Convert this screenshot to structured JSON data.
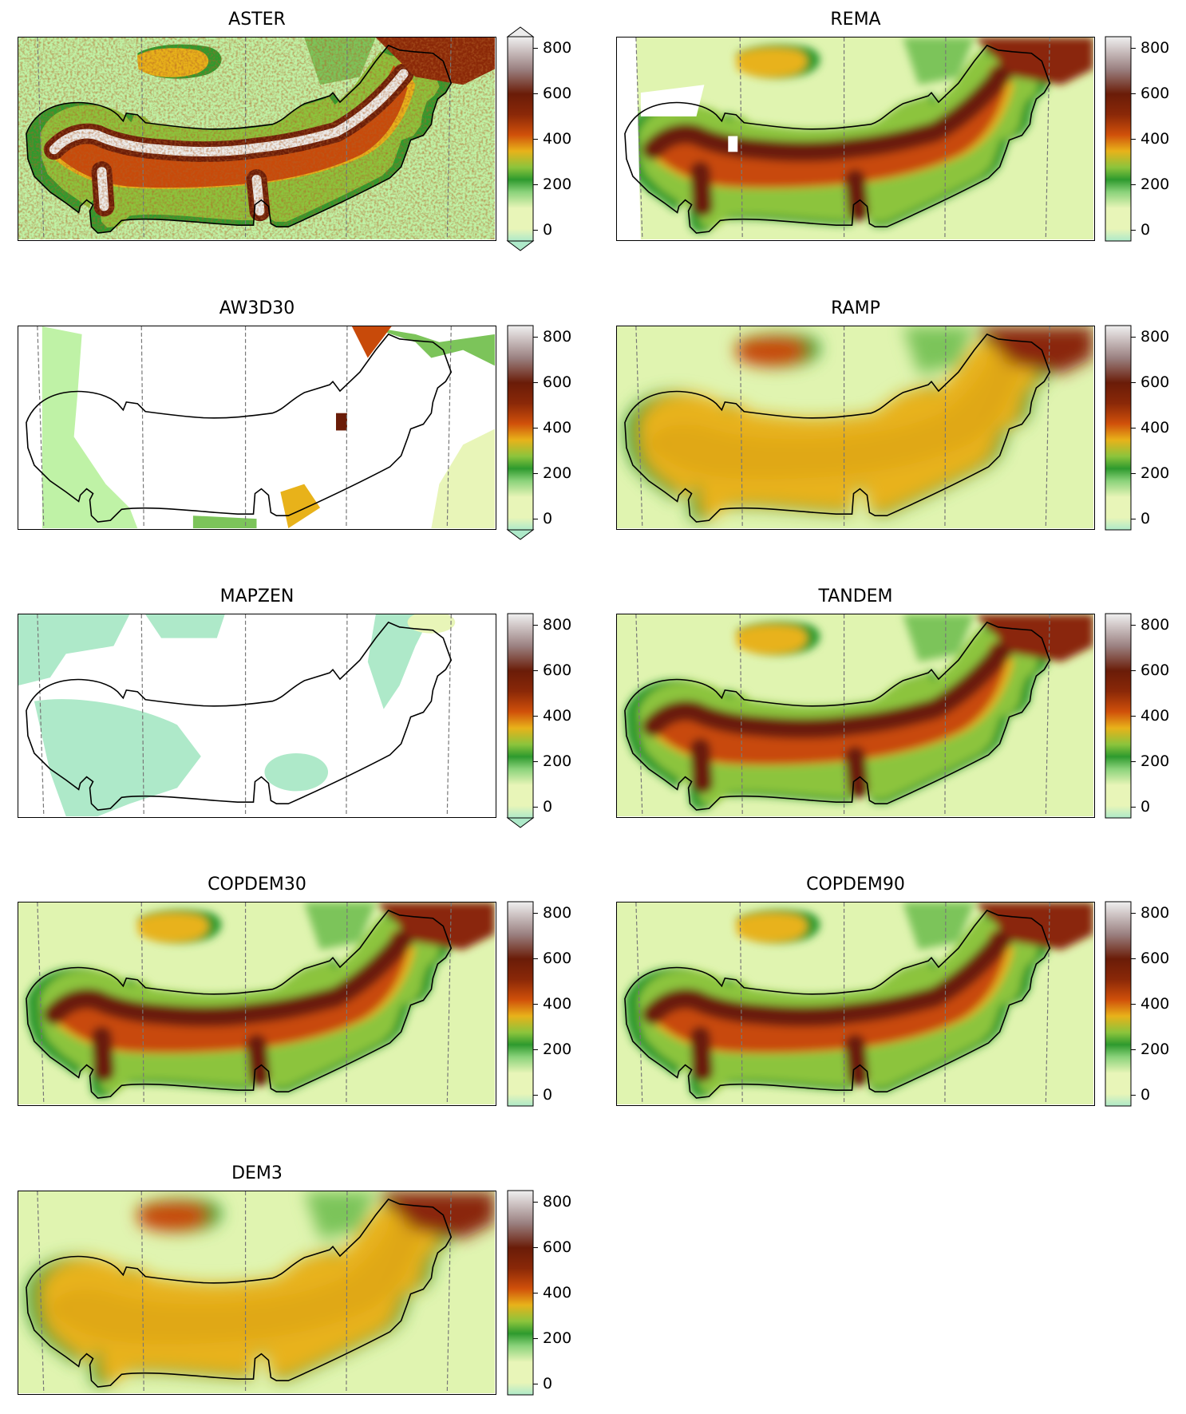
{
  "colormap": {
    "name": "terrain-like",
    "stops": [
      "#aee9c9",
      "#e8f5b8",
      "#b8ee9c",
      "#2e9a2e",
      "#8cc43c",
      "#e8b21a",
      "#c84a0a",
      "#6a1c08",
      "#7e4c3c",
      "#b8a8a8",
      "#ececec"
    ]
  },
  "panels": [
    {
      "title": "ASTER",
      "ticks": [
        "800",
        "600",
        "400",
        "200",
        "0"
      ],
      "extend": "both",
      "style": "noisy",
      "base": "#bff2a6",
      "voids": "none"
    },
    {
      "title": "REMA",
      "ticks": [
        "800",
        "600",
        "400",
        "200",
        "0"
      ],
      "extend": "none",
      "style": "smooth",
      "base": "#e0f4b0",
      "voids": "edge"
    },
    {
      "title": "AW3D30",
      "ticks": [
        "800",
        "600",
        "400",
        "200",
        "0"
      ],
      "extend": "min",
      "style": "voids",
      "base": "#ffffff",
      "voids": "most"
    },
    {
      "title": "RAMP",
      "ticks": [
        "800",
        "600",
        "400",
        "200",
        "0"
      ],
      "extend": "none",
      "style": "blurred",
      "base": "#e0f4b0",
      "voids": "none"
    },
    {
      "title": "MAPZEN",
      "ticks": [
        "800",
        "600",
        "400",
        "200",
        "0"
      ],
      "extend": "min",
      "style": "patchy",
      "base": "#ffffff",
      "voids": "most"
    },
    {
      "title": "TANDEM",
      "ticks": [
        "800",
        "600",
        "400",
        "200",
        "0"
      ],
      "extend": "none",
      "style": "smooth",
      "base": "#e0f4b0",
      "voids": "none"
    },
    {
      "title": "COPDEM30",
      "ticks": [
        "800",
        "600",
        "400",
        "200",
        "0"
      ],
      "extend": "none",
      "style": "smooth",
      "base": "#e0f4b0",
      "voids": "none"
    },
    {
      "title": "COPDEM90",
      "ticks": [
        "800",
        "600",
        "400",
        "200",
        "0"
      ],
      "extend": "none",
      "style": "smooth",
      "base": "#e0f4b0",
      "voids": "none"
    },
    {
      "title": "DEM3",
      "ticks": [
        "800",
        "600",
        "400",
        "200",
        "0"
      ],
      "extend": "none",
      "style": "blurred",
      "base": "#e0f4b0",
      "voids": "none"
    }
  ]
}
